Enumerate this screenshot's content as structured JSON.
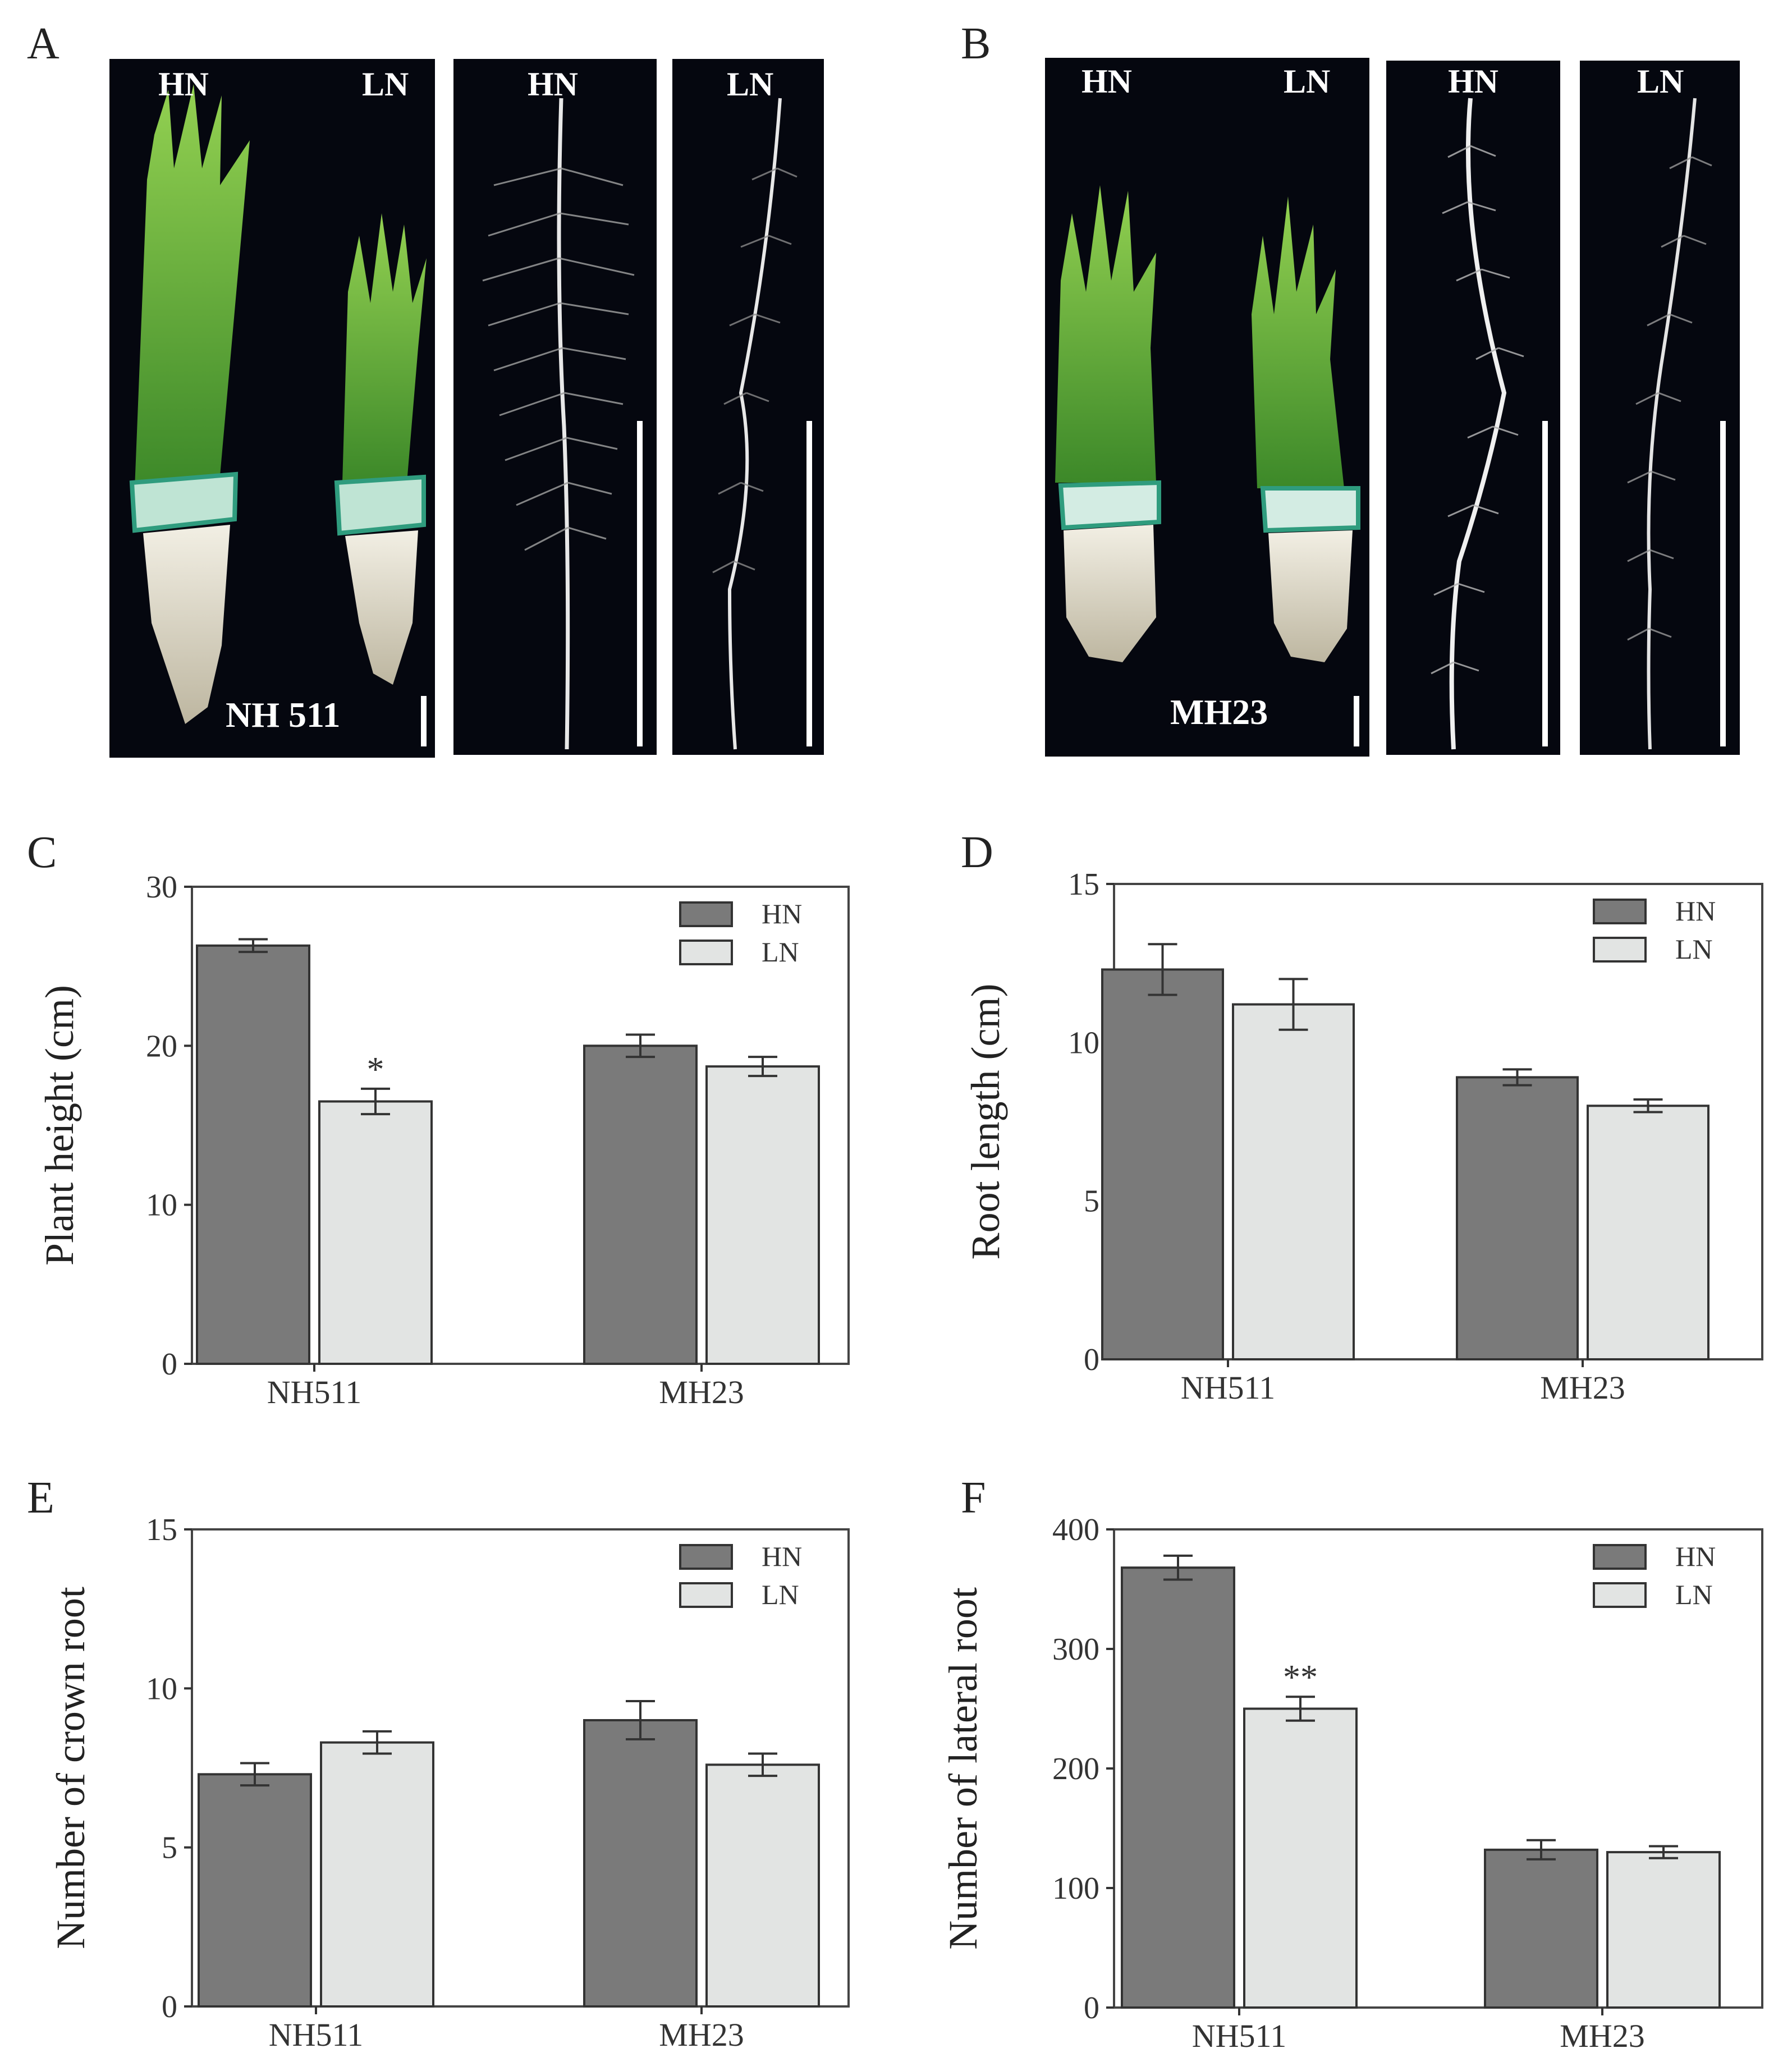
{
  "photos": [
    {
      "letter": "A",
      "labels": {
        "hn": "HN",
        "ln": "LN",
        "hn_root": "HN",
        "ln_root": "LN"
      },
      "name": "NH 511"
    },
    {
      "letter": "B",
      "labels": {
        "hn": "HN",
        "ln": "LN",
        "hn_root": "HN",
        "ln_root": "LN"
      },
      "name": "MH23"
    }
  ],
  "legend": {
    "hn": "HN",
    "ln": "LN"
  },
  "colors": {
    "hn": "#7a7a7a",
    "ln": "#e2e4e3",
    "photo_bg": "#05070f",
    "shoot": "#6cbf3a",
    "root": "#e8e4d6"
  },
  "chart_data": [
    {
      "type": "bar",
      "letter": "C",
      "categories": [
        "NH511",
        "MH23"
      ],
      "ylabel": "Plant height (cm)",
      "ylim": [
        0,
        30
      ],
      "yticks": [
        0,
        10,
        20,
        30
      ],
      "legend_position": "top-right",
      "series": [
        {
          "name": "HN",
          "values": [
            26.3,
            20.0
          ],
          "errors": [
            0.4,
            0.7
          ]
        },
        {
          "name": "LN",
          "values": [
            16.5,
            18.7
          ],
          "errors": [
            0.8,
            0.6
          ]
        }
      ],
      "annotations": [
        {
          "series": "LN",
          "category": "NH511",
          "text": "*"
        }
      ]
    },
    {
      "type": "bar",
      "letter": "D",
      "categories": [
        "NH511",
        "MH23"
      ],
      "ylabel": "Root length (cm)",
      "ylim": [
        0,
        15
      ],
      "yticks": [
        0,
        5,
        10,
        15
      ],
      "legend_position": "top-right",
      "series": [
        {
          "name": "HN",
          "values": [
            12.3,
            8.9
          ],
          "errors": [
            0.8,
            0.25
          ]
        },
        {
          "name": "LN",
          "values": [
            11.2,
            8.0
          ],
          "errors": [
            0.8,
            0.2
          ]
        }
      ],
      "annotations": []
    },
    {
      "type": "bar",
      "letter": "E",
      "categories": [
        "NH511",
        "MH23"
      ],
      "ylabel": "Number of crown root",
      "ylim": [
        0,
        15
      ],
      "yticks": [
        0,
        5,
        10,
        15
      ],
      "legend_position": "top-right",
      "series": [
        {
          "name": "HN",
          "values": [
            7.3,
            9.0
          ],
          "errors": [
            0.35,
            0.6
          ]
        },
        {
          "name": "LN",
          "values": [
            8.3,
            7.6
          ],
          "errors": [
            0.35,
            0.35
          ]
        }
      ],
      "annotations": []
    },
    {
      "type": "bar",
      "letter": "F",
      "categories": [
        "NH511",
        "MH23"
      ],
      "ylabel": "Number of lateral root",
      "ylim": [
        0,
        400
      ],
      "yticks": [
        0,
        100,
        200,
        300,
        400
      ],
      "legend_position": "top-right",
      "series": [
        {
          "name": "HN",
          "values": [
            368,
            132
          ],
          "errors": [
            10,
            8
          ]
        },
        {
          "name": "LN",
          "values": [
            250,
            130
          ],
          "errors": [
            10,
            5
          ]
        }
      ],
      "annotations": [
        {
          "series": "LN",
          "category": "NH511",
          "text": "**"
        }
      ]
    }
  ]
}
